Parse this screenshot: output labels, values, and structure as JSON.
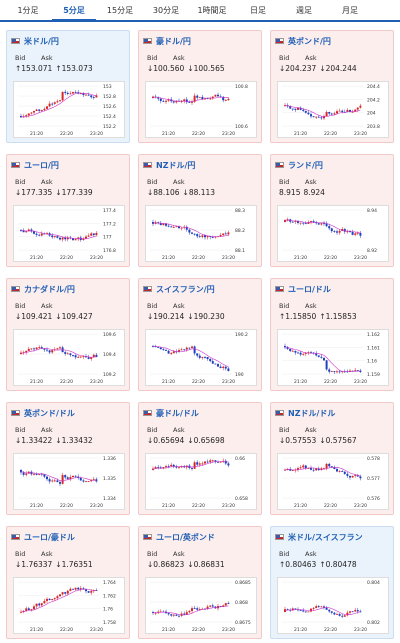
{
  "tabs": [
    "1分足",
    "5分足",
    "15分足",
    "30分足",
    "1時間足",
    "日足",
    "週足",
    "月足"
  ],
  "active_tab": 1,
  "labels": {
    "bid": "Bid",
    "ask": "Ask"
  },
  "times": [
    "21:20",
    "22:20",
    "23:20"
  ],
  "cards": [
    {
      "title": "米ドル/円",
      "bid": "↑153.071",
      "ask": "↑153.073",
      "ticks": [
        "153",
        "152.8",
        "152.6",
        "152.4",
        "152.2"
      ],
      "trend": "up",
      "highlight": "blue"
    },
    {
      "title": "豪ドル/円",
      "bid": "↓100.560",
      "ask": "↓100.565",
      "ticks": [
        "100.8",
        "100.6"
      ],
      "trend": "down"
    },
    {
      "title": "英ポンド/円",
      "bid": "↓204.237",
      "ask": "↓204.244",
      "ticks": [
        "204.4",
        "204.2",
        "204",
        "203.8"
      ],
      "trend": "flat"
    },
    {
      "title": "ユーロ/円",
      "bid": "↓177.335",
      "ask": "↓177.339",
      "ticks": [
        "177.4",
        "177.2",
        "177",
        "176.8"
      ],
      "trend": "flat"
    },
    {
      "title": "NZドル/円",
      "bid": "↓88.106",
      "ask": "↓88.113",
      "ticks": [
        "88.3",
        "88.2",
        "88.1"
      ],
      "trend": "down"
    },
    {
      "title": "ランド/円",
      "bid": "8.915",
      "ask": "8.924",
      "ticks": [
        "8.94",
        "8.92"
      ],
      "trend": "down"
    },
    {
      "title": "カナダドル/円",
      "bid": "↓109.421",
      "ask": "↓109.427",
      "ticks": [
        "109.6",
        "109.4",
        "109.2"
      ],
      "trend": "flat"
    },
    {
      "title": "スイスフラン/円",
      "bid": "↓190.214",
      "ask": "↓190.230",
      "ticks": [
        "190.2",
        "190"
      ],
      "trend": "down"
    },
    {
      "title": "ユーロ/ドル",
      "bid": "↑1.15850",
      "ask": "↑1.15853",
      "ticks": [
        "1.162",
        "1.161",
        "1.16",
        "1.159"
      ],
      "trend": "down"
    },
    {
      "title": "英ポンド/ドル",
      "bid": "↓1.33422",
      "ask": "↓1.33432",
      "ticks": [
        "1.336",
        "1.335",
        "1.334"
      ],
      "trend": "down"
    },
    {
      "title": "豪ドル/ドル",
      "bid": "↓0.65694",
      "ask": "↓0.65698",
      "ticks": [
        "0.66",
        "0.658"
      ],
      "trend": "down"
    },
    {
      "title": "NZドル/ドル",
      "bid": "↓0.57553",
      "ask": "↓0.57567",
      "ticks": [
        "0.578",
        "0.577",
        "0.576"
      ],
      "trend": "down"
    },
    {
      "title": "ユーロ/豪ドル",
      "bid": "↓1.76337",
      "ask": "↓1.76351",
      "ticks": [
        "1.764",
        "1.762",
        "1.76",
        "1.758"
      ],
      "trend": "up"
    },
    {
      "title": "ユーロ/英ポンド",
      "bid": "↓0.86823",
      "ask": "↓0.86831",
      "ticks": [
        "0.8685",
        "0.868",
        "0.8675"
      ],
      "trend": "up"
    },
    {
      "title": "米ドル/スイスフラン",
      "bid": "↑0.80463",
      "ask": "↑0.80478",
      "ticks": [
        "0.804",
        "0.802"
      ],
      "trend": "up",
      "highlight": "blue"
    }
  ],
  "colors": {
    "accent": "#1f5fb4",
    "bull": "#d62728",
    "bear": "#1f3fbf",
    "ma": "#cc33cc"
  }
}
